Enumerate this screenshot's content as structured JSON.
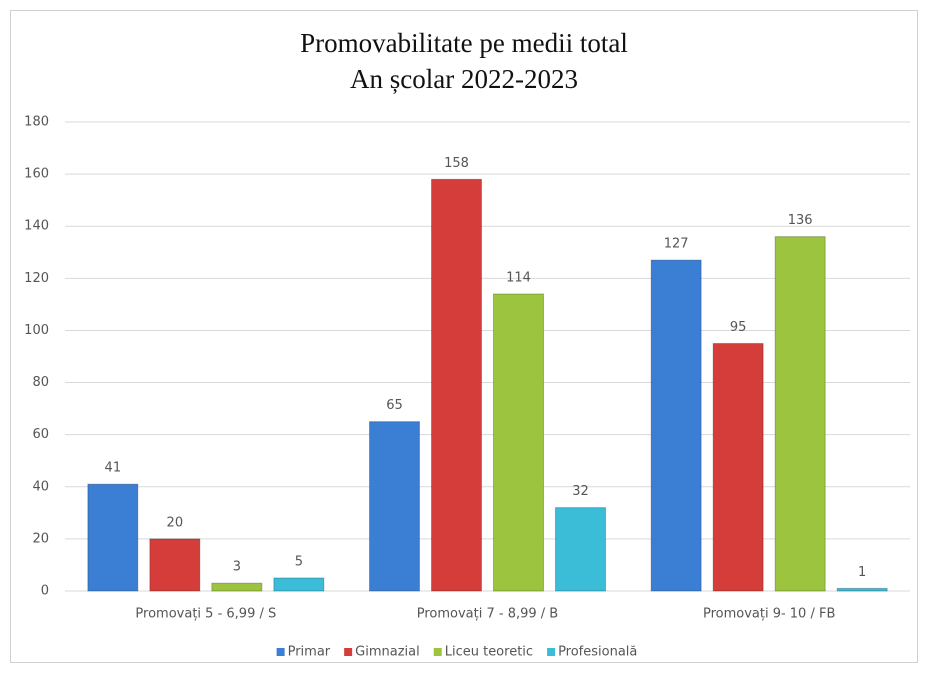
{
  "chart_data": {
    "type": "bar",
    "title": "Promovabilitate pe medii total",
    "subtitle": "An școlar 2022-2023",
    "categories": [
      "Promovați 5 - 6,99 / S",
      "Promovați 7 - 8,99 / B",
      "Promovați 9- 10 / FB"
    ],
    "series": [
      {
        "name": "Primar",
        "color": "#3b7fd4",
        "values": [
          41,
          65,
          127
        ]
      },
      {
        "name": "Gimnazial",
        "color": "#d43d3a",
        "values": [
          20,
          158,
          95
        ]
      },
      {
        "name": "Liceu teoretic",
        "color": "#9cc43f",
        "values": [
          3,
          114,
          136
        ]
      },
      {
        "name": "Profesională",
        "color": "#3cbdd7",
        "values": [
          5,
          32,
          1
        ]
      }
    ],
    "ylim": [
      0,
      180
    ],
    "yticks": [
      0,
      20,
      40,
      60,
      80,
      100,
      120,
      140,
      160,
      180
    ],
    "grid": true,
    "legend": "bottom"
  }
}
